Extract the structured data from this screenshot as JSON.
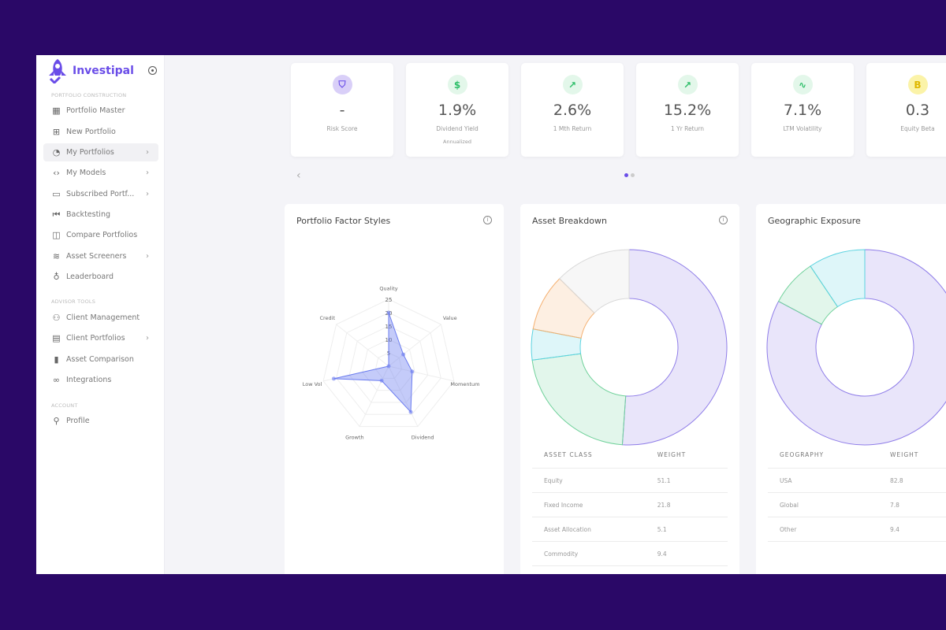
{
  "brand": {
    "name": "Investipal"
  },
  "sidebar": {
    "sections": [
      {
        "title": "PORTFOLIO CONSTRUCTION",
        "items": [
          {
            "label": "Portfolio Master",
            "icon": "grid-icon"
          },
          {
            "label": "New Portfolio",
            "icon": "plus-square-icon"
          },
          {
            "label": "My Portfolios",
            "icon": "pie-icon",
            "active": true,
            "chevron": true
          },
          {
            "label": "My Models",
            "icon": "code-icon",
            "chevron": true
          },
          {
            "label": "Subscribed Portf...",
            "icon": "folder-icon",
            "chevron": true
          },
          {
            "label": "Backtesting",
            "icon": "skip-back-icon"
          },
          {
            "label": "Compare Portfolios",
            "icon": "columns-icon"
          },
          {
            "label": "Asset Screeners",
            "icon": "layers-icon",
            "chevron": true
          },
          {
            "label": "Leaderboard",
            "icon": "award-icon"
          }
        ]
      },
      {
        "title": "ADVISOR TOOLS",
        "items": [
          {
            "label": "Client Management",
            "icon": "users-icon"
          },
          {
            "label": "Client Portfolios",
            "icon": "briefcase-icon",
            "chevron": true
          },
          {
            "label": "Asset Comparison",
            "icon": "bar-chart-icon"
          },
          {
            "label": "Integrations",
            "icon": "link-icon"
          }
        ]
      },
      {
        "title": "ACCOUNT",
        "items": [
          {
            "label": "Profile",
            "icon": "user-icon"
          }
        ]
      }
    ]
  },
  "stats": [
    {
      "value": "-",
      "label": "Risk Score",
      "icon": "shield-icon",
      "glyph": "⛉",
      "bg": "#d9cff8",
      "fg": "#6a4de8"
    },
    {
      "value": "1.9%",
      "label": "Dividend Yield",
      "sub": "Annualized",
      "icon": "dollar-icon",
      "glyph": "$",
      "bg": "#e3f7ea",
      "fg": "#2fbf6a"
    },
    {
      "value": "2.6%",
      "label": "1 Mth Return",
      "icon": "trending-up-icon",
      "glyph": "↗",
      "bg": "#e3f7ea",
      "fg": "#2fbf6a"
    },
    {
      "value": "15.2%",
      "label": "1 Yr Return",
      "icon": "trending-up-icon",
      "glyph": "↗",
      "bg": "#e3f7ea",
      "fg": "#2fbf6a"
    },
    {
      "value": "7.1%",
      "label": "LTM Volatility",
      "icon": "activity-icon",
      "glyph": "∿",
      "bg": "#e3f7ea",
      "fg": "#2fbf6a"
    },
    {
      "value": "0.3",
      "label": "Equity Beta",
      "icon": "beta-icon",
      "glyph": "B",
      "bg": "#fbf3a8",
      "fg": "#e0b800"
    }
  ],
  "cards": {
    "factor": "Portfolio Factor Styles",
    "asset": "Asset Breakdown",
    "geo": "Geographic Exposure"
  },
  "chart_data": [
    {
      "type": "radar",
      "title": "Portfolio Factor Styles",
      "categories": [
        "Quality",
        "Value",
        "Momentum",
        "Dividend",
        "Growth",
        "Low Vol",
        "Credit"
      ],
      "values": [
        20,
        7,
        9,
        19,
        6,
        21,
        0
      ],
      "rticks": [
        5,
        10,
        15,
        20,
        25
      ],
      "rlim": [
        0,
        25
      ],
      "color": "#6b7cf0"
    },
    {
      "type": "pie",
      "title": "Asset Breakdown",
      "headers": [
        "ASSET CLASS",
        "WEIGHT"
      ],
      "categories": [
        "Equity",
        "Fixed Income",
        "Asset Allocation",
        "Commodity"
      ],
      "values": [
        51.1,
        21.8,
        5.1,
        9.4
      ],
      "colors": [
        "#8f7de8",
        "#6fd19a",
        "#5bd3e0",
        "#f5b070",
        "#d8d8d8"
      ]
    },
    {
      "type": "pie",
      "title": "Geographic Exposure",
      "headers": [
        "GEOGRAPHY",
        "WEIGHT"
      ],
      "categories": [
        "USA",
        "Global",
        "Other"
      ],
      "values": [
        82.8,
        7.8,
        9.4
      ],
      "colors": [
        "#8f7de8",
        "#6fd19a",
        "#5bd3e0"
      ]
    }
  ]
}
